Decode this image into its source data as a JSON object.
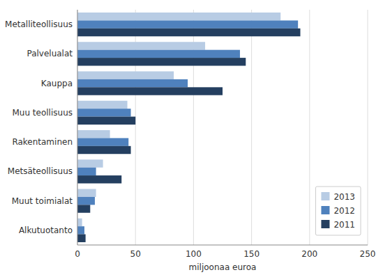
{
  "chart_data": {
    "type": "bar",
    "orientation": "horizontal",
    "categories": [
      "Metalliteollisuus",
      "Palvelualat",
      "Kauppa",
      "Muu teollisuus",
      "Rakentaminen",
      "Metsäteollisuus",
      "Muut toimialat",
      "Alkutuotanto"
    ],
    "series": [
      {
        "name": "2013",
        "color": "#b8cce4",
        "values": [
          175,
          110,
          83,
          43,
          28,
          22,
          16,
          4
        ]
      },
      {
        "name": "2012",
        "color": "#4f81bd",
        "values": [
          190,
          140,
          95,
          46,
          44,
          16,
          15,
          6
        ]
      },
      {
        "name": "2011",
        "color": "#243f60",
        "values": [
          192,
          145,
          125,
          50,
          46,
          38,
          11,
          7
        ]
      }
    ],
    "xlabel": "miljoonaa euroa",
    "xlim": [
      0,
      250
    ],
    "xticks": [
      0,
      50,
      100,
      150,
      200,
      250
    ],
    "grid": true,
    "legend": "lower right"
  }
}
